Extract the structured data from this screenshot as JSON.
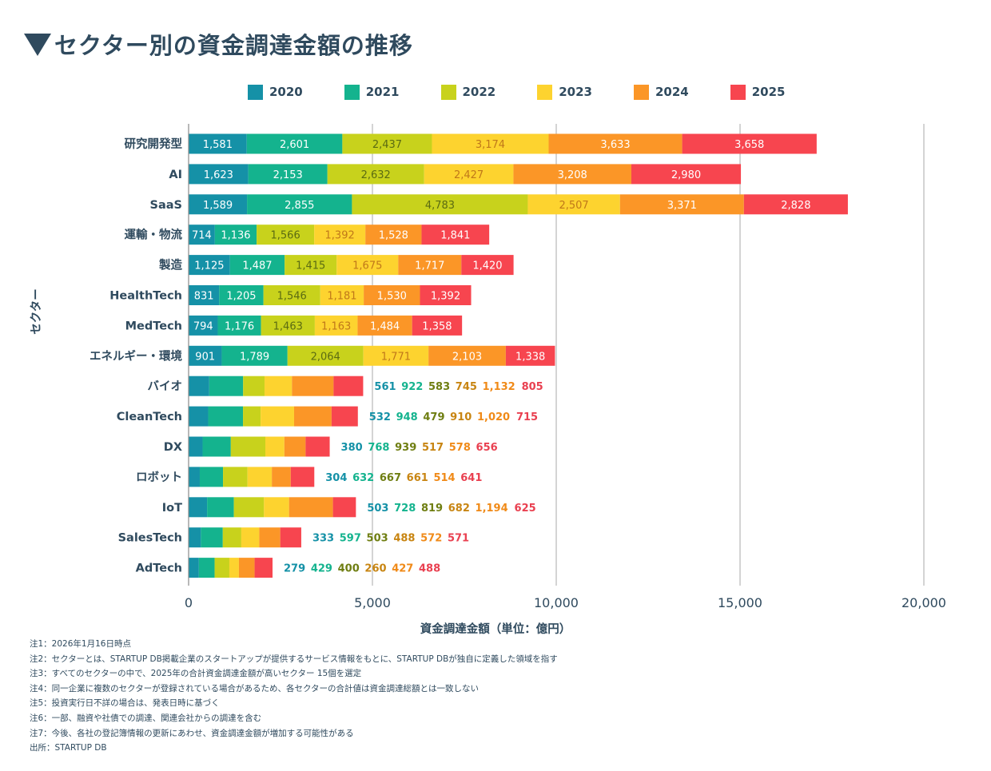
{
  "title": "セクター別の資金調達金額の推移",
  "colors": {
    "2020": "#1591a7",
    "2021": "#14b38e",
    "2022": "#c8d21c",
    "2023": "#fdd32f",
    "2024": "#fb9627",
    "2025": "#f7454f",
    "text_dark": "#2f4a5e",
    "label_inside_2022": "#5b6b12",
    "label_inside_2023": "#c0781a"
  },
  "outside_label_colors": [
    "#1591a7",
    "#14b38e",
    "#6f7e12",
    "#c88512",
    "#f08a18",
    "#e94050"
  ],
  "chart_data": {
    "type": "bar",
    "orientation": "horizontal",
    "stacked": true,
    "title": "セクター別の資金調達金額の推移",
    "xlabel": "資金調達金額（単位：億円）",
    "ylabel": "セクター",
    "xlim": [
      0,
      20000
    ],
    "xticks": [
      0,
      5000,
      10000,
      15000,
      20000
    ],
    "xtick_labels": [
      "0",
      "5,000",
      "10,000",
      "15,000",
      "20,000"
    ],
    "grid": true,
    "legend_position": "top",
    "categories": [
      "研究開発型",
      "AI",
      "SaaS",
      "運輸・物流",
      "製造",
      "HealthTech",
      "MedTech",
      "エネルギー・環境",
      "バイオ",
      "CleanTech",
      "DX",
      "ロボット",
      "IoT",
      "SalesTech",
      "AdTech"
    ],
    "series": [
      {
        "name": "2020",
        "values": [
          1581,
          1623,
          1589,
          714,
          1125,
          831,
          794,
          901,
          561,
          532,
          380,
          304,
          503,
          333,
          279
        ]
      },
      {
        "name": "2021",
        "values": [
          2601,
          2153,
          2855,
          1136,
          1487,
          1205,
          1176,
          1789,
          922,
          948,
          768,
          632,
          728,
          597,
          429
        ]
      },
      {
        "name": "2022",
        "values": [
          2437,
          2632,
          4783,
          1566,
          1415,
          1546,
          1463,
          2064,
          583,
          479,
          939,
          667,
          819,
          503,
          400
        ]
      },
      {
        "name": "2023",
        "values": [
          3174,
          2427,
          2507,
          1392,
          1675,
          1181,
          1163,
          1771,
          745,
          910,
          517,
          661,
          682,
          488,
          260
        ]
      },
      {
        "name": "2024",
        "values": [
          3633,
          3208,
          3371,
          1528,
          1717,
          1530,
          1484,
          2103,
          1132,
          1020,
          578,
          514,
          1194,
          572,
          427
        ]
      },
      {
        "name": "2025",
        "values": [
          3658,
          2980,
          2828,
          1841,
          1420,
          1392,
          1358,
          1338,
          805,
          715,
          656,
          641,
          625,
          571,
          488
        ]
      }
    ],
    "labels_inside_count": 8
  },
  "notes": [
    "注1：2026年1月16日時点",
    "注2：セクターとは、STARTUP DB掲載企業のスタートアップが提供するサービス情報をもとに、STARTUP DBが独自に定義した領域を指す",
    "注3：すべてのセクターの中で、2025年の合計資金調達金額が高いセクター 15個を選定",
    "注4：同一企業に複数のセクターが登録されている場合があるため、各セクターの合計値は資金調達総額とは一致しない",
    "注5：投資実行日不詳の場合は、発表日時に基づく",
    "注6：一部、融資や社債での調達、関連会社からの調達を含む",
    "注7：今後、各社の登記簿情報の更新にあわせ、資金調達金額が増加する可能性がある",
    "出所：STARTUP DB"
  ]
}
